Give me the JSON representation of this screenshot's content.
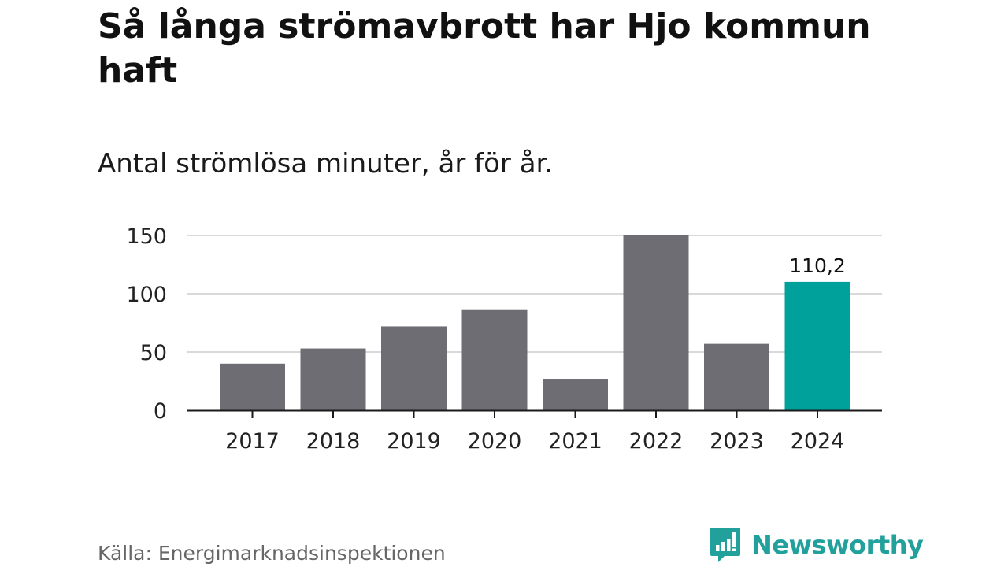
{
  "header": {
    "title": "Så långa strömavbrott har Hjo kommun haft",
    "subtitle": "Antal strömlösa minuter, år för år."
  },
  "footer": {
    "source": "Källa: Energimarknadsinspektionen",
    "brand": "Newsworthy",
    "logo_icon": "bar-chart-speech-bubble-icon"
  },
  "colors": {
    "bar": "#6e6d73",
    "highlight": "#00a19a",
    "grid": "#d9d9d9",
    "axis": "#1a1a1a",
    "brand": "#21a09c"
  },
  "chart_data": {
    "type": "bar",
    "title": "Så långa strömavbrott har Hjo kommun haft",
    "subtitle": "Antal strömlösa minuter, år för år.",
    "xlabel": "",
    "ylabel": "",
    "categories": [
      "2017",
      "2018",
      "2019",
      "2020",
      "2021",
      "2022",
      "2023",
      "2024"
    ],
    "values": [
      40,
      53,
      72,
      86,
      27,
      150,
      57,
      110.2
    ],
    "highlight_index": 7,
    "data_labels": [
      {
        "index": 7,
        "text": "110,2"
      }
    ],
    "yticks": [
      0,
      50,
      100,
      150
    ],
    "ytick_labels": [
      "0",
      "50",
      "100",
      "150"
    ],
    "ylim": [
      0,
      150
    ],
    "grid": true,
    "legend": "none"
  }
}
